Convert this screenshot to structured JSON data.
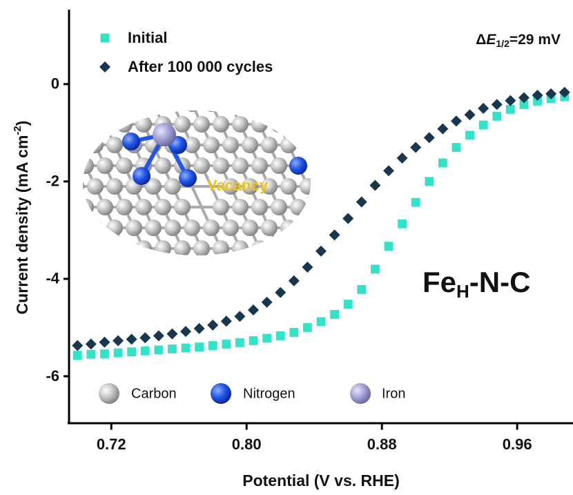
{
  "chart_data": {
    "type": "scatter",
    "x_label": "Potential (V vs. RHE)",
    "y_label": {
      "text": "Current density (mA cm",
      "sup": "-2",
      "end": ")"
    },
    "annotation": {
      "delta": "Δ",
      "var": "E",
      "sub": "1/2",
      "rest": "=29 mV"
    },
    "sample": {
      "main": "Fe",
      "sub": "H",
      "rest": "-N-C"
    },
    "inset": {
      "label": "Vacancy",
      "legend": [
        "Carbon",
        "Nitrogen",
        "Iron"
      ]
    },
    "xlim": [
      0.695,
      0.993
    ],
    "ylim": [
      -7,
      1.5
    ],
    "xticks": [
      0.72,
      {
        "value": 0.8,
        "label": "0.80"
      },
      0.88,
      0.96
    ],
    "yticks": [
      -6,
      -4,
      -2,
      0
    ],
    "x": [
      0.7,
      0.708,
      0.716,
      0.724,
      0.732,
      0.74,
      0.748,
      0.756,
      0.764,
      0.772,
      0.78,
      0.788,
      0.796,
      0.804,
      0.812,
      0.82,
      0.828,
      0.836,
      0.844,
      0.852,
      0.86,
      0.868,
      0.876,
      0.884,
      0.892,
      0.9,
      0.908,
      0.916,
      0.924,
      0.932,
      0.94,
      0.948,
      0.956,
      0.964,
      0.972,
      0.98,
      0.988
    ],
    "series": [
      {
        "name": "Initial",
        "color": "#33e3c8",
        "marker": "square",
        "values": [
          -5.57,
          -5.55,
          -5.54,
          -5.52,
          -5.5,
          -5.48,
          -5.46,
          -5.44,
          -5.42,
          -5.4,
          -5.37,
          -5.34,
          -5.31,
          -5.27,
          -5.22,
          -5.17,
          -5.1,
          -5.0,
          -4.88,
          -4.73,
          -4.52,
          -4.22,
          -3.8,
          -3.33,
          -2.87,
          -2.43,
          -2.0,
          -1.62,
          -1.3,
          -1.05,
          -0.84,
          -0.66,
          -0.52,
          -0.42,
          -0.35,
          -0.3,
          -0.26
        ]
      },
      {
        "name": "After 100 000 cycles",
        "color": "#17374f",
        "marker": "diamond",
        "values": [
          -5.37,
          -5.34,
          -5.3,
          -5.27,
          -5.24,
          -5.21,
          -5.17,
          -5.13,
          -5.08,
          -5.02,
          -4.95,
          -4.87,
          -4.77,
          -4.64,
          -4.48,
          -4.28,
          -4.04,
          -3.76,
          -3.43,
          -3.1,
          -2.76,
          -2.42,
          -2.08,
          -1.78,
          -1.52,
          -1.3,
          -1.1,
          -0.92,
          -0.76,
          -0.63,
          -0.5,
          -0.42,
          -0.34,
          -0.28,
          -0.23,
          -0.2,
          -0.17
        ]
      }
    ]
  }
}
